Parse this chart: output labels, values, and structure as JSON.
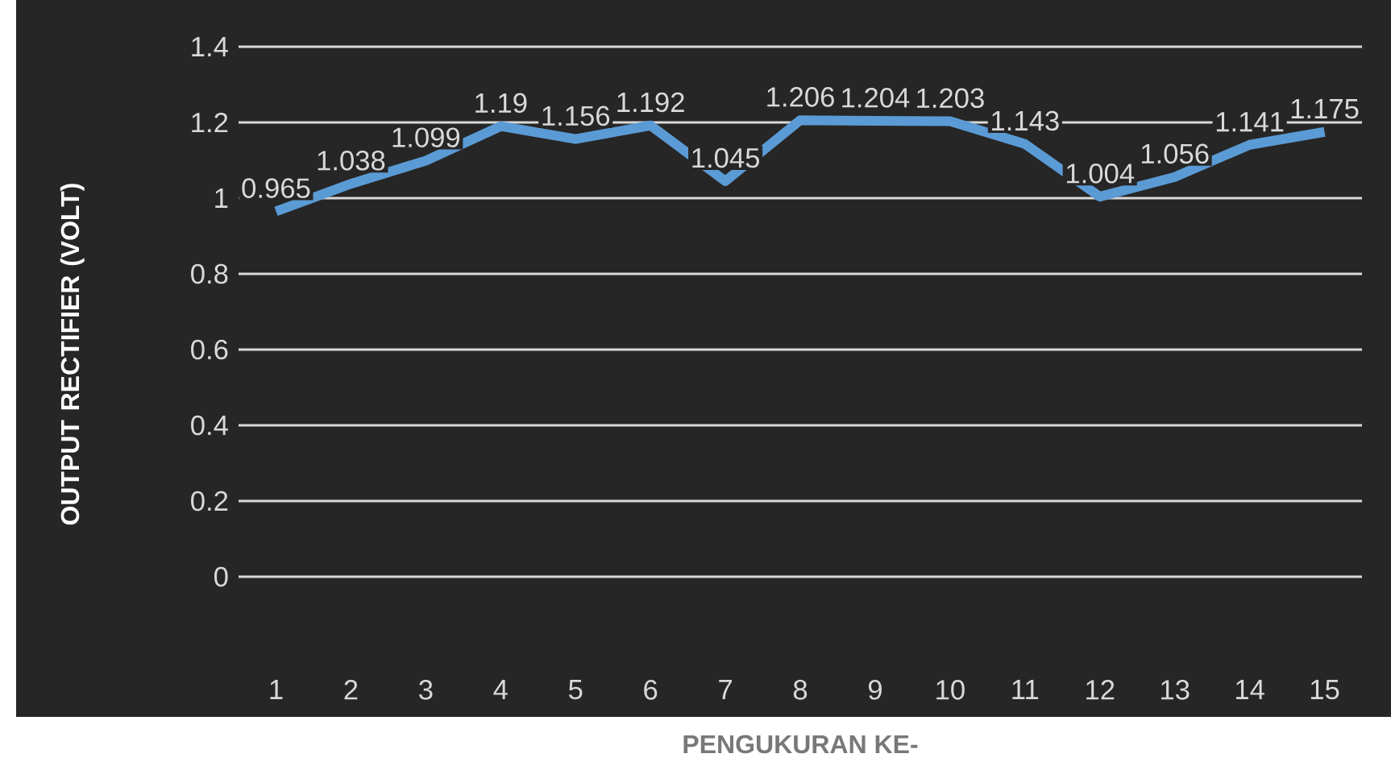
{
  "chart_data": {
    "type": "line",
    "xlabel": "PENGUKURAN KE-",
    "ylabel": "OUTPUT RECTIFIER (VOLT)",
    "categories": [
      "1",
      "2",
      "3",
      "4",
      "5",
      "6",
      "7",
      "8",
      "9",
      "10",
      "11",
      "12",
      "13",
      "14",
      "15"
    ],
    "series": [
      {
        "color": "#5b9bd5",
        "values": [
          0.965,
          1.038,
          1.099,
          1.19,
          1.156,
          1.192,
          1.045,
          1.206,
          1.204,
          1.203,
          1.143,
          1.004,
          1.056,
          1.141,
          1.175
        ]
      }
    ],
    "ylim": [
      0,
      1.4
    ],
    "yticks": [
      0,
      0.2,
      0.4,
      0.6,
      0.8,
      1,
      1.2,
      1.4
    ],
    "grid": "y",
    "data_labels": true,
    "marker": "none",
    "line_style": "solid"
  }
}
